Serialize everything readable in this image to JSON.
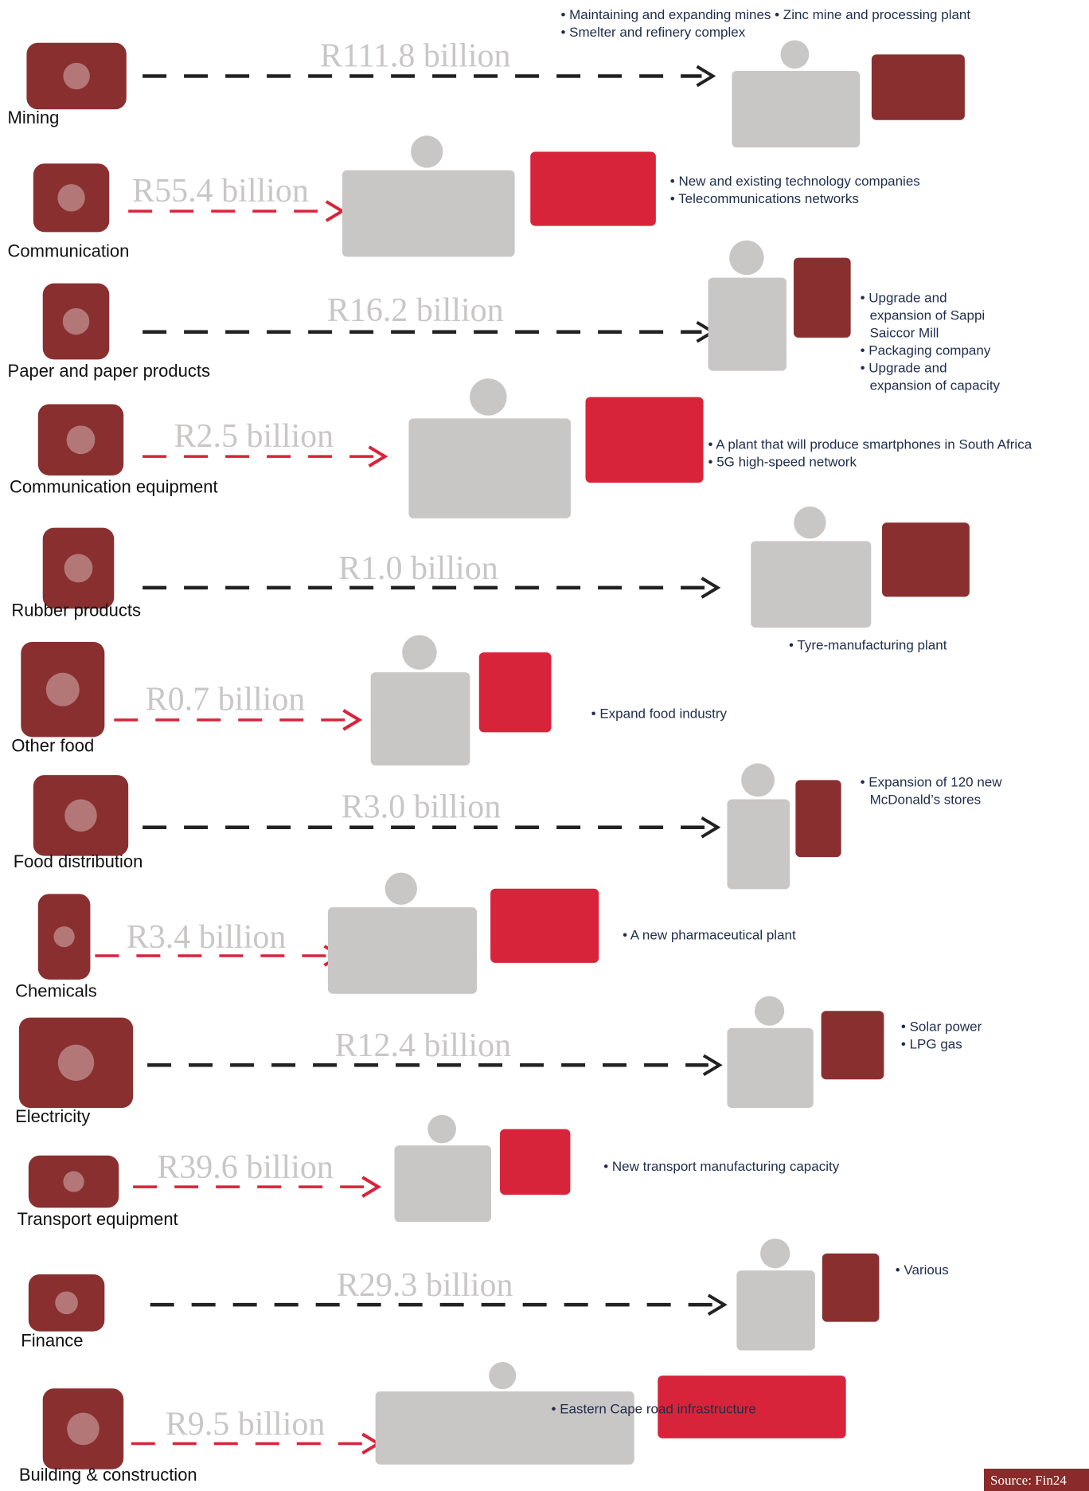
{
  "rows": [
    {
      "label": "Mining",
      "amount": "R111.8 billion",
      "notes": [
        "• Maintaining and expanding mines • Zinc mine and processing plant",
        "• Smelter and refinery complex"
      ]
    },
    {
      "label": "Communication",
      "amount": "R55.4 billion",
      "notes": [
        "• New and existing technology companies",
        "• Telecommunications networks"
      ]
    },
    {
      "label": "Paper and paper products",
      "amount": "R16.2 billion",
      "notes": [
        "• Upgrade and",
        "expansion of Sappi",
        "Saiccor Mill",
        "• Packaging company",
        "• Upgrade and",
        "expansion of capacity"
      ]
    },
    {
      "label": "Communication equipment",
      "amount": "R2.5 billion",
      "notes": [
        "• A plant that will produce smartphones in South Africa",
        "• 5G high-speed network"
      ]
    },
    {
      "label": "Rubber products",
      "amount": "R1.0 billion",
      "notes": [
        "• Tyre-manufacturing plant"
      ]
    },
    {
      "label": "Other food",
      "amount": "R0.7 billion",
      "notes": [
        "• Expand food industry"
      ]
    },
    {
      "label": "Food distribution",
      "amount": "R3.0 billion",
      "notes": [
        "• Expansion of 120 new",
        "McDonald’s stores"
      ]
    },
    {
      "label": "Chemicals",
      "amount": "R3.4 billion",
      "notes": [
        "• A new pharmaceutical plant"
      ]
    },
    {
      "label": "Electricity",
      "amount": "R12.4 billion",
      "notes": [
        "• Solar power",
        "• LPG gas"
      ]
    },
    {
      "label": "Transport equipment",
      "amount": "R39.6 billion",
      "notes": [
        "• New transport manufacturing capacity"
      ]
    },
    {
      "label": "Finance",
      "amount": "R29.3 billion",
      "notes": [
        "• Various"
      ]
    },
    {
      "label": "Building & construction",
      "amount": "R9.5 billion",
      "notes": [
        "• Eastern Cape road infrastructure"
      ]
    }
  ],
  "source": "Source: Fin24"
}
